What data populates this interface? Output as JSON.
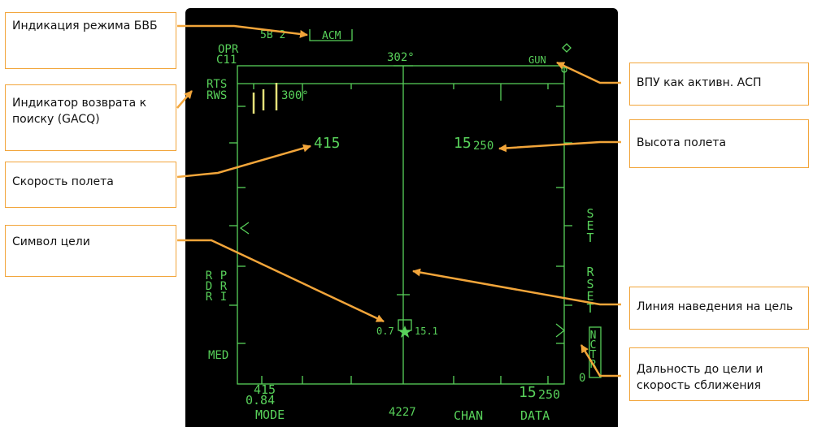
{
  "display": {
    "mode_top": "5B 2",
    "mode_acm": "ACM",
    "opr": "OPR",
    "c11": "C11",
    "heading_top": "302°",
    "weapon": "GUN",
    "rts": "RTS",
    "rws": "RWS",
    "heading_sel": "300°",
    "airspeed": "415",
    "altitude_big": "15",
    "altitude_small": "250",
    "side_set": "SET",
    "side_rset": "RSET",
    "rdr": "RDR",
    "pri": "PRI",
    "med": "MED",
    "nctr": "NCTR",
    "target_range": "0.7",
    "target_closure": "15.1",
    "zero": "0",
    "bottom_speed": "415",
    "bottom_mach": "0.84",
    "bottom_alt_big": "15",
    "bottom_alt_small": "250",
    "pb_mode": "MODE",
    "pb_4227": "4227",
    "pb_chan": "CHAN",
    "pb_data": "DATA",
    "symbol_color": "#58d15a"
  },
  "callouts": {
    "aam_mode": "Индикация режима БВБ",
    "gacq": "Индикатор возврата к поиску (GACQ)",
    "airspeed": "Скорость полета",
    "target_symbol": "Символ цели",
    "gun_active": "ВПУ как активн. АСП",
    "altitude": "Высота полета",
    "steering_line": "Линия наведения на цель",
    "range_closure": "Дальность до цели и скорость сближения",
    "accent_color": "#f2a53a"
  }
}
